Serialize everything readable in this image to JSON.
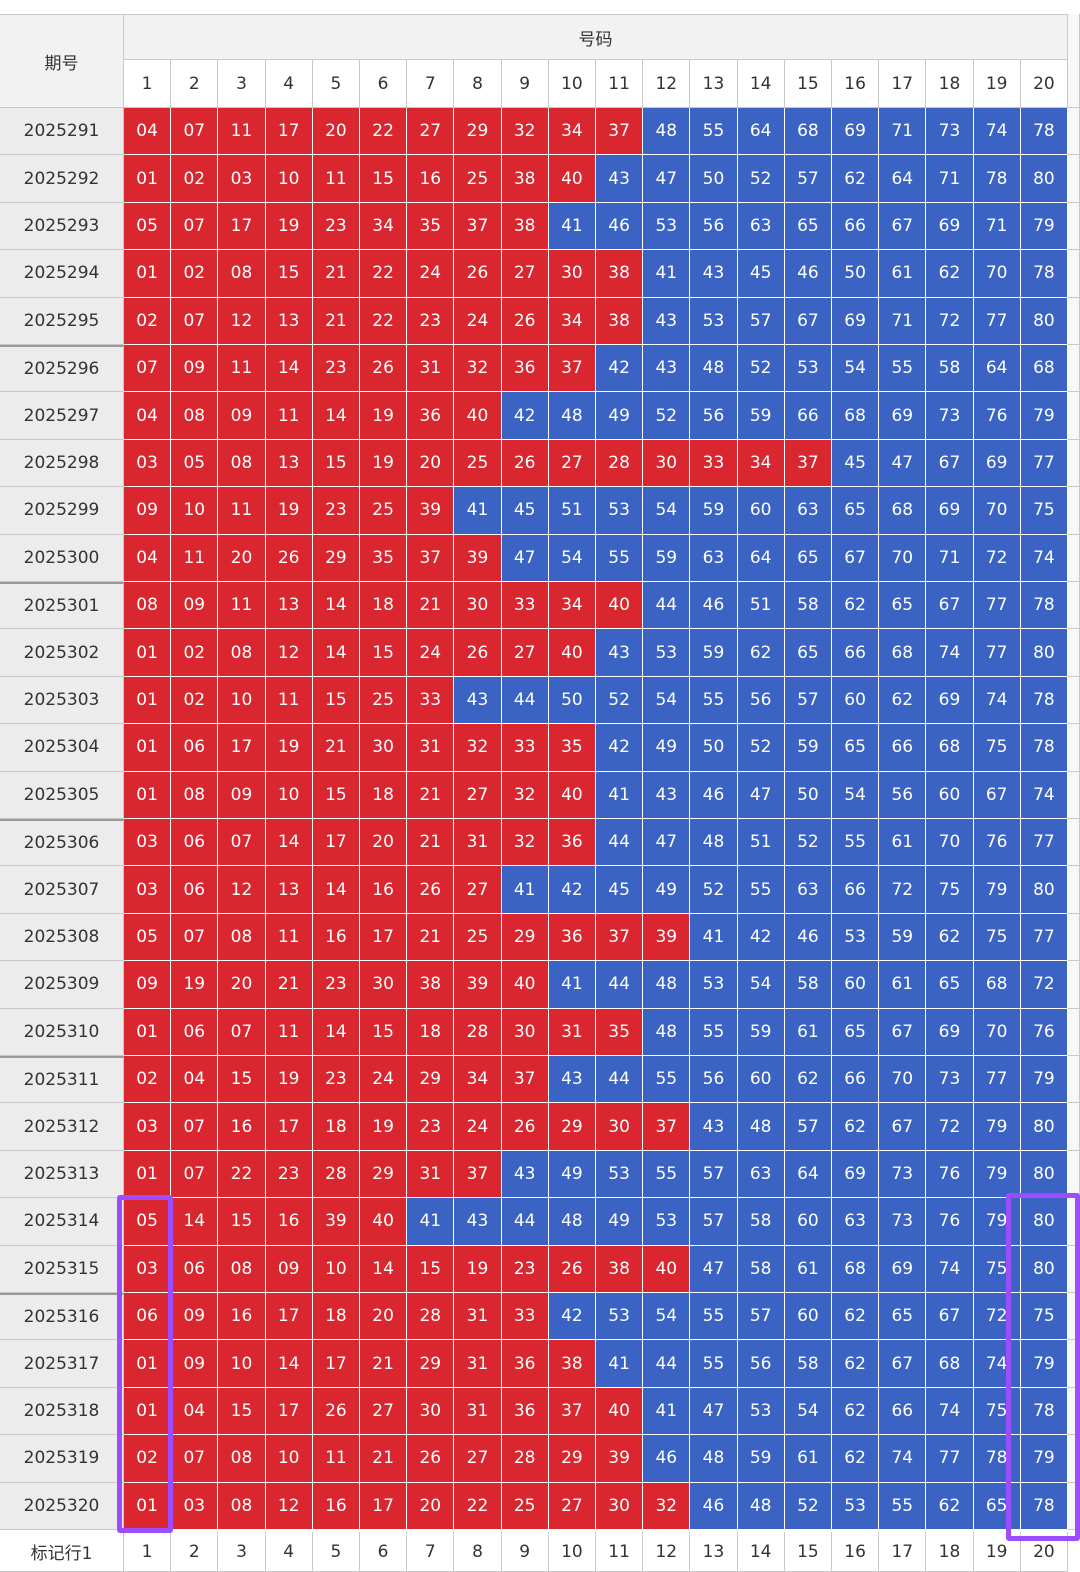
{
  "header": {
    "period_label": "期号",
    "numbers_label": "号码",
    "columns": [
      "1",
      "2",
      "3",
      "4",
      "5",
      "6",
      "7",
      "8",
      "9",
      "10",
      "11",
      "12",
      "13",
      "14",
      "15",
      "16",
      "17",
      "18",
      "19",
      "20"
    ]
  },
  "settings": {
    "low_color": "#d9262f",
    "high_color": "#3a63c3",
    "low_max": 40
  },
  "table": {
    "rows": [
      {
        "period": "2025291",
        "numbers": [
          "04",
          "07",
          "11",
          "17",
          "20",
          "22",
          "27",
          "29",
          "32",
          "34",
          "37",
          "48",
          "55",
          "64",
          "68",
          "69",
          "71",
          "73",
          "74",
          "78"
        ]
      },
      {
        "period": "2025292",
        "numbers": [
          "01",
          "02",
          "03",
          "10",
          "11",
          "15",
          "16",
          "25",
          "38",
          "40",
          "43",
          "47",
          "50",
          "52",
          "57",
          "62",
          "64",
          "71",
          "78",
          "80"
        ]
      },
      {
        "period": "2025293",
        "numbers": [
          "05",
          "07",
          "17",
          "19",
          "23",
          "34",
          "35",
          "37",
          "38",
          "41",
          "46",
          "53",
          "56",
          "63",
          "65",
          "66",
          "67",
          "69",
          "71",
          "79"
        ]
      },
      {
        "period": "2025294",
        "numbers": [
          "01",
          "02",
          "08",
          "15",
          "21",
          "22",
          "24",
          "26",
          "27",
          "30",
          "38",
          "41",
          "43",
          "45",
          "46",
          "50",
          "61",
          "62",
          "70",
          "78"
        ]
      },
      {
        "period": "2025295",
        "numbers": [
          "02",
          "07",
          "12",
          "13",
          "21",
          "22",
          "23",
          "24",
          "26",
          "34",
          "38",
          "43",
          "53",
          "57",
          "67",
          "69",
          "71",
          "72",
          "77",
          "80"
        ]
      },
      {
        "period": "2025296",
        "numbers": [
          "07",
          "09",
          "11",
          "14",
          "23",
          "26",
          "31",
          "32",
          "36",
          "37",
          "42",
          "43",
          "48",
          "52",
          "53",
          "54",
          "55",
          "58",
          "64",
          "68"
        ]
      },
      {
        "period": "2025297",
        "numbers": [
          "04",
          "08",
          "09",
          "11",
          "14",
          "19",
          "36",
          "40",
          "42",
          "48",
          "49",
          "52",
          "56",
          "59",
          "66",
          "68",
          "69",
          "73",
          "76",
          "79"
        ]
      },
      {
        "period": "2025298",
        "numbers": [
          "03",
          "05",
          "08",
          "13",
          "15",
          "19",
          "20",
          "25",
          "26",
          "27",
          "28",
          "30",
          "33",
          "34",
          "37",
          "45",
          "47",
          "67",
          "69",
          "77"
        ]
      },
      {
        "period": "2025299",
        "numbers": [
          "09",
          "10",
          "11",
          "19",
          "23",
          "25",
          "39",
          "41",
          "45",
          "51",
          "53",
          "54",
          "59",
          "60",
          "63",
          "65",
          "68",
          "69",
          "70",
          "75"
        ]
      },
      {
        "period": "2025300",
        "numbers": [
          "04",
          "11",
          "20",
          "26",
          "29",
          "35",
          "37",
          "39",
          "47",
          "54",
          "55",
          "59",
          "63",
          "64",
          "65",
          "67",
          "70",
          "71",
          "72",
          "74"
        ]
      },
      {
        "period": "2025301",
        "numbers": [
          "08",
          "09",
          "11",
          "13",
          "14",
          "18",
          "21",
          "30",
          "33",
          "34",
          "40",
          "44",
          "46",
          "51",
          "58",
          "62",
          "65",
          "67",
          "77",
          "78"
        ]
      },
      {
        "period": "2025302",
        "numbers": [
          "01",
          "02",
          "08",
          "12",
          "14",
          "15",
          "24",
          "26",
          "27",
          "40",
          "43",
          "53",
          "59",
          "62",
          "65",
          "66",
          "68",
          "74",
          "77",
          "80"
        ]
      },
      {
        "period": "2025303",
        "numbers": [
          "01",
          "02",
          "10",
          "11",
          "15",
          "25",
          "33",
          "43",
          "44",
          "50",
          "52",
          "54",
          "55",
          "56",
          "57",
          "60",
          "62",
          "69",
          "74",
          "78"
        ]
      },
      {
        "period": "2025304",
        "numbers": [
          "01",
          "06",
          "17",
          "19",
          "21",
          "30",
          "31",
          "32",
          "33",
          "35",
          "42",
          "49",
          "50",
          "52",
          "59",
          "65",
          "66",
          "68",
          "75",
          "78"
        ]
      },
      {
        "period": "2025305",
        "numbers": [
          "01",
          "08",
          "09",
          "10",
          "15",
          "18",
          "21",
          "27",
          "32",
          "40",
          "41",
          "43",
          "46",
          "47",
          "50",
          "54",
          "56",
          "60",
          "67",
          "74"
        ]
      },
      {
        "period": "2025306",
        "numbers": [
          "03",
          "06",
          "07",
          "14",
          "17",
          "20",
          "21",
          "31",
          "32",
          "36",
          "44",
          "47",
          "48",
          "51",
          "52",
          "55",
          "61",
          "70",
          "76",
          "77"
        ]
      },
      {
        "period": "2025307",
        "numbers": [
          "03",
          "06",
          "12",
          "13",
          "14",
          "16",
          "26",
          "27",
          "41",
          "42",
          "45",
          "49",
          "52",
          "55",
          "63",
          "66",
          "72",
          "75",
          "79",
          "80"
        ]
      },
      {
        "period": "2025308",
        "numbers": [
          "05",
          "07",
          "08",
          "11",
          "16",
          "17",
          "21",
          "25",
          "29",
          "36",
          "37",
          "39",
          "41",
          "42",
          "46",
          "53",
          "59",
          "62",
          "75",
          "77"
        ]
      },
      {
        "period": "2025309",
        "numbers": [
          "09",
          "19",
          "20",
          "21",
          "23",
          "30",
          "38",
          "39",
          "40",
          "41",
          "44",
          "48",
          "53",
          "54",
          "58",
          "60",
          "61",
          "65",
          "68",
          "72"
        ]
      },
      {
        "period": "2025310",
        "numbers": [
          "01",
          "06",
          "07",
          "11",
          "14",
          "15",
          "18",
          "28",
          "30",
          "31",
          "35",
          "48",
          "55",
          "59",
          "61",
          "65",
          "67",
          "69",
          "70",
          "76"
        ]
      },
      {
        "period": "2025311",
        "numbers": [
          "02",
          "04",
          "15",
          "19",
          "23",
          "24",
          "29",
          "34",
          "37",
          "43",
          "44",
          "55",
          "56",
          "60",
          "62",
          "66",
          "70",
          "73",
          "77",
          "79"
        ]
      },
      {
        "period": "2025312",
        "numbers": [
          "03",
          "07",
          "16",
          "17",
          "18",
          "19",
          "23",
          "24",
          "26",
          "29",
          "30",
          "37",
          "43",
          "48",
          "57",
          "62",
          "67",
          "72",
          "79",
          "80"
        ]
      },
      {
        "period": "2025313",
        "numbers": [
          "01",
          "07",
          "22",
          "23",
          "28",
          "29",
          "31",
          "37",
          "43",
          "49",
          "53",
          "55",
          "57",
          "63",
          "64",
          "69",
          "73",
          "76",
          "79",
          "80"
        ]
      },
      {
        "period": "2025314",
        "numbers": [
          "05",
          "14",
          "15",
          "16",
          "39",
          "40",
          "41",
          "43",
          "44",
          "48",
          "49",
          "53",
          "57",
          "58",
          "60",
          "63",
          "73",
          "76",
          "79",
          "80"
        ]
      },
      {
        "period": "2025315",
        "numbers": [
          "03",
          "06",
          "08",
          "09",
          "10",
          "14",
          "15",
          "19",
          "23",
          "26",
          "38",
          "40",
          "47",
          "58",
          "61",
          "68",
          "69",
          "74",
          "75",
          "80"
        ]
      },
      {
        "period": "2025316",
        "numbers": [
          "06",
          "09",
          "16",
          "17",
          "18",
          "20",
          "28",
          "31",
          "33",
          "42",
          "53",
          "54",
          "55",
          "57",
          "60",
          "62",
          "65",
          "67",
          "72",
          "75"
        ]
      },
      {
        "period": "2025317",
        "numbers": [
          "01",
          "09",
          "10",
          "14",
          "17",
          "21",
          "29",
          "31",
          "36",
          "38",
          "41",
          "44",
          "55",
          "56",
          "58",
          "62",
          "67",
          "68",
          "74",
          "79"
        ]
      },
      {
        "period": "2025318",
        "numbers": [
          "01",
          "04",
          "15",
          "17",
          "26",
          "27",
          "30",
          "31",
          "36",
          "37",
          "40",
          "41",
          "47",
          "53",
          "54",
          "62",
          "66",
          "74",
          "75",
          "78"
        ]
      },
      {
        "period": "2025319",
        "numbers": [
          "02",
          "07",
          "08",
          "10",
          "11",
          "21",
          "26",
          "27",
          "28",
          "29",
          "39",
          "46",
          "48",
          "59",
          "61",
          "62",
          "74",
          "77",
          "78",
          "79"
        ]
      },
      {
        "period": "2025320",
        "numbers": [
          "01",
          "03",
          "08",
          "12",
          "16",
          "17",
          "20",
          "22",
          "25",
          "27",
          "30",
          "32",
          "46",
          "48",
          "52",
          "53",
          "55",
          "62",
          "65",
          "78"
        ]
      }
    ]
  },
  "footer": {
    "label": "标记行1",
    "columns": [
      "1",
      "2",
      "3",
      "4",
      "5",
      "6",
      "7",
      "8",
      "9",
      "10",
      "11",
      "12",
      "13",
      "14",
      "15",
      "16",
      "17",
      "18",
      "19",
      "20"
    ]
  }
}
